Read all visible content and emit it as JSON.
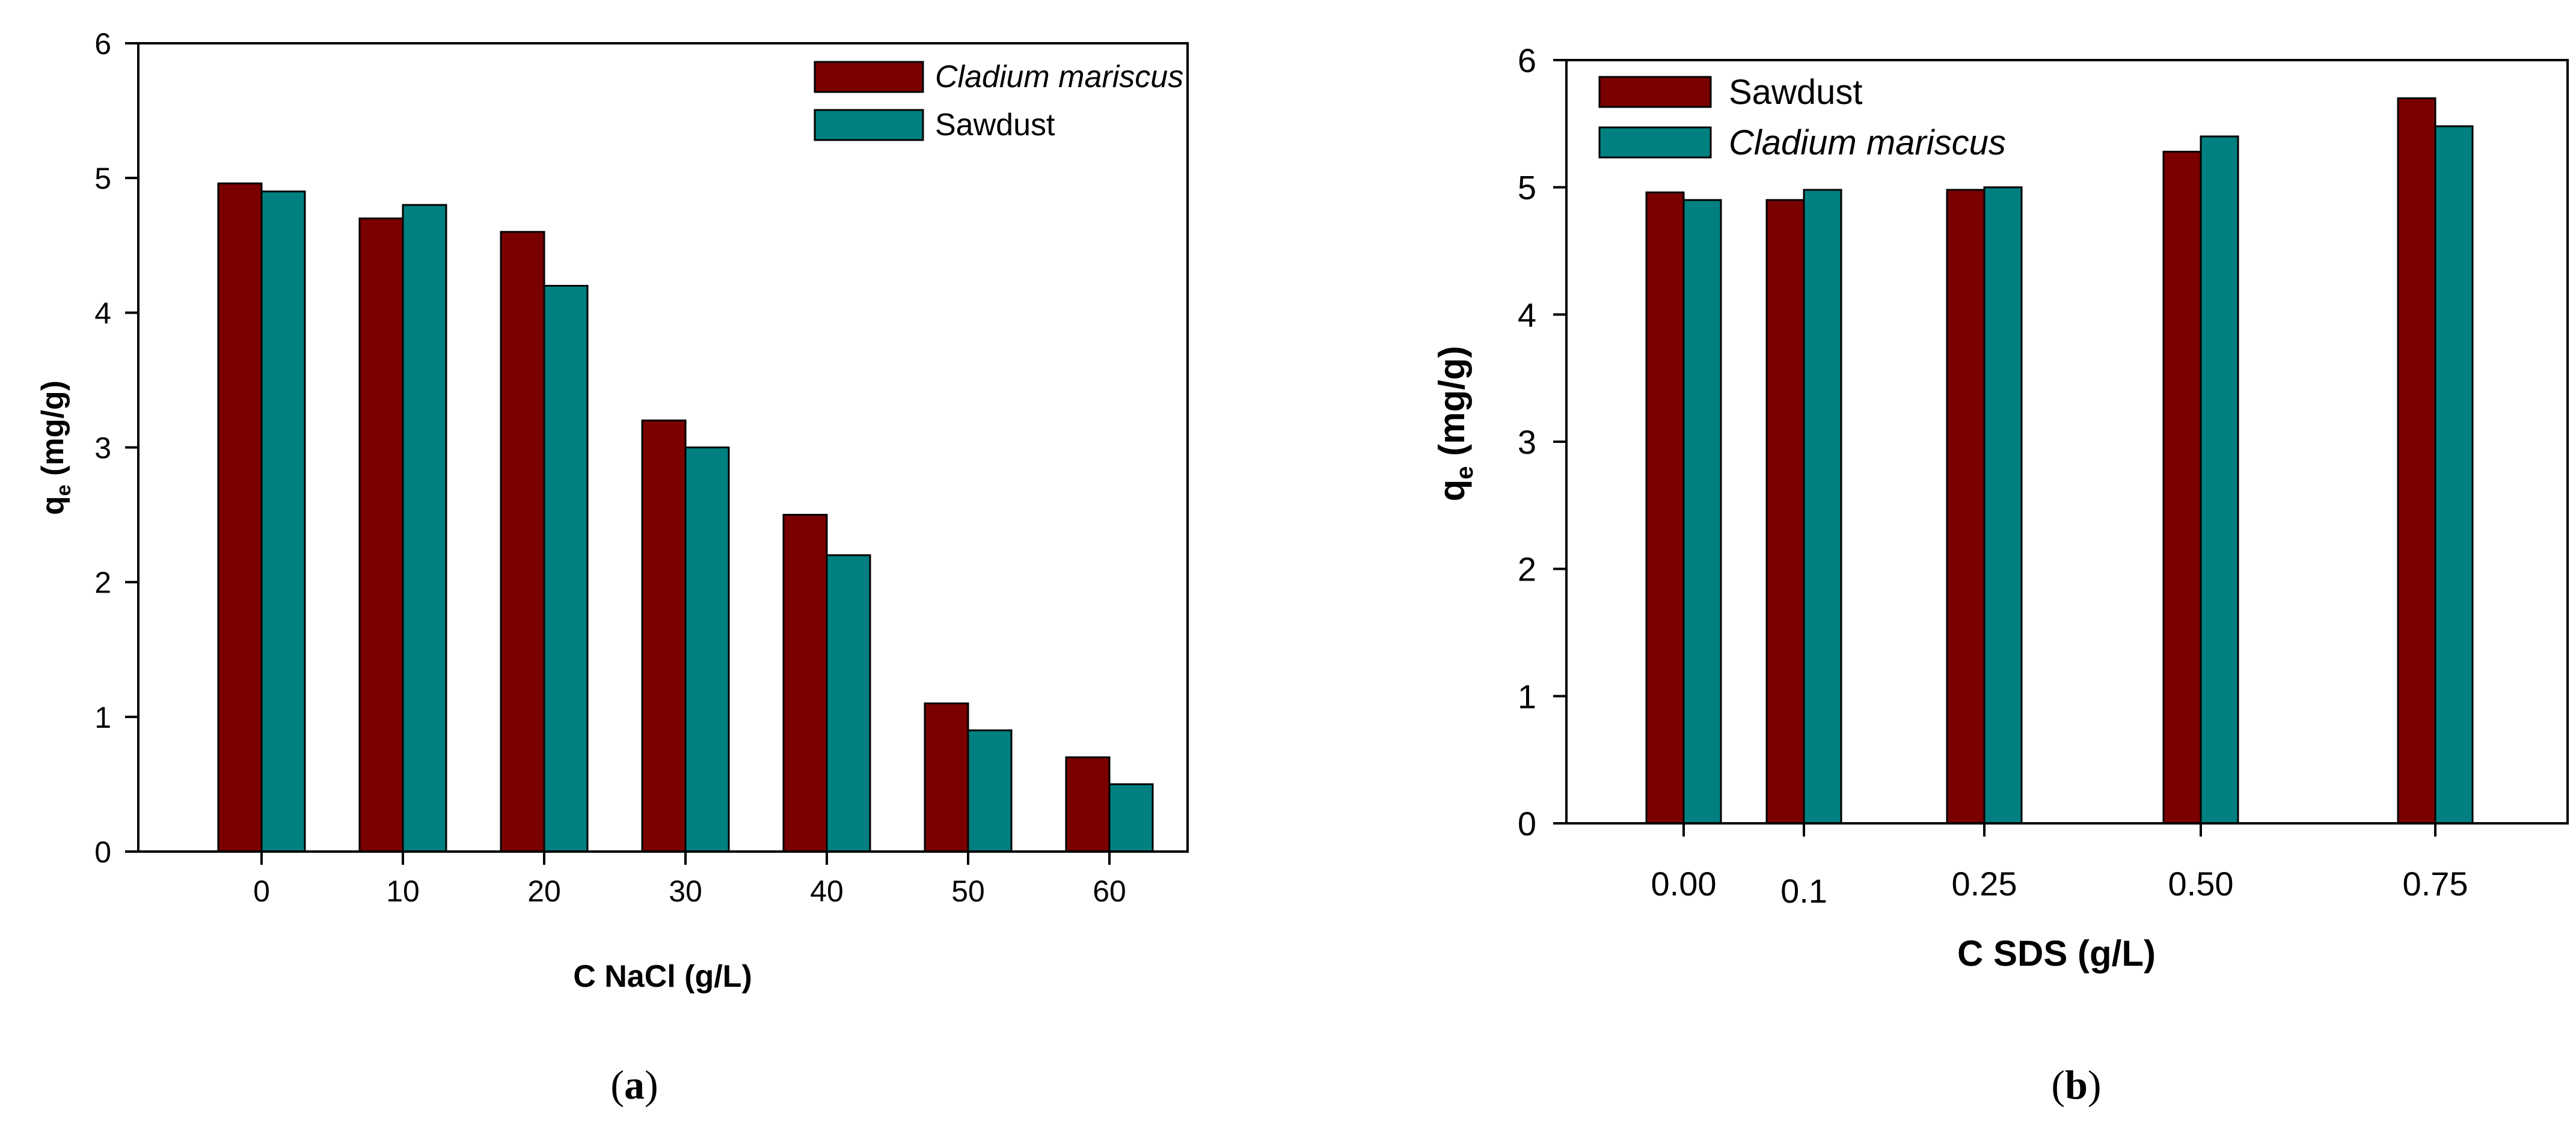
{
  "colors": {
    "series_dark_red": "#7a0000",
    "series_teal": "#008080",
    "axis": "#000000"
  },
  "chart_data": [
    {
      "id": "a",
      "type": "bar",
      "panel_label": "a",
      "title": "",
      "xlabel": "C NaCl (g/L)",
      "ylabel": {
        "main": "q",
        "sub": "e",
        "unit": " (mg/g)"
      },
      "categories": [
        "0",
        "10",
        "20",
        "30",
        "40",
        "50",
        "60"
      ],
      "ylim": [
        0,
        6
      ],
      "yticks": [
        "0",
        "1",
        "2",
        "3",
        "4",
        "5",
        "6"
      ],
      "legend_position": "top-right",
      "series": [
        {
          "name": "Cladium mariscus",
          "italic": true,
          "color": "#7a0000",
          "values": [
            4.96,
            4.7,
            4.6,
            3.2,
            2.5,
            1.1,
            0.7
          ]
        },
        {
          "name": "Sawdust",
          "italic": false,
          "color": "#008080",
          "values": [
            4.9,
            4.8,
            4.2,
            3.0,
            2.2,
            0.9,
            0.5
          ]
        }
      ]
    },
    {
      "id": "b",
      "type": "bar",
      "panel_label": "b",
      "title": "",
      "xlabel": "C SDS (g/L)",
      "ylabel": {
        "main": "q",
        "sub": "e",
        "unit": " (mg/g)"
      },
      "categories": [
        "0.00",
        "0.1",
        "0.25",
        "0.50",
        "0.75"
      ],
      "ylim": [
        0,
        6
      ],
      "yticks": [
        "0",
        "1",
        "2",
        "3",
        "4",
        "5",
        "6"
      ],
      "legend_position": "top-left",
      "series": [
        {
          "name": "Sawdust",
          "italic": false,
          "color": "#7a0000",
          "values": [
            4.96,
            4.9,
            4.98,
            5.28,
            5.7
          ]
        },
        {
          "name": "Cladium mariscus",
          "italic": true,
          "color": "#008080",
          "values": [
            4.9,
            4.98,
            5.0,
            5.4,
            5.48
          ]
        }
      ]
    }
  ]
}
